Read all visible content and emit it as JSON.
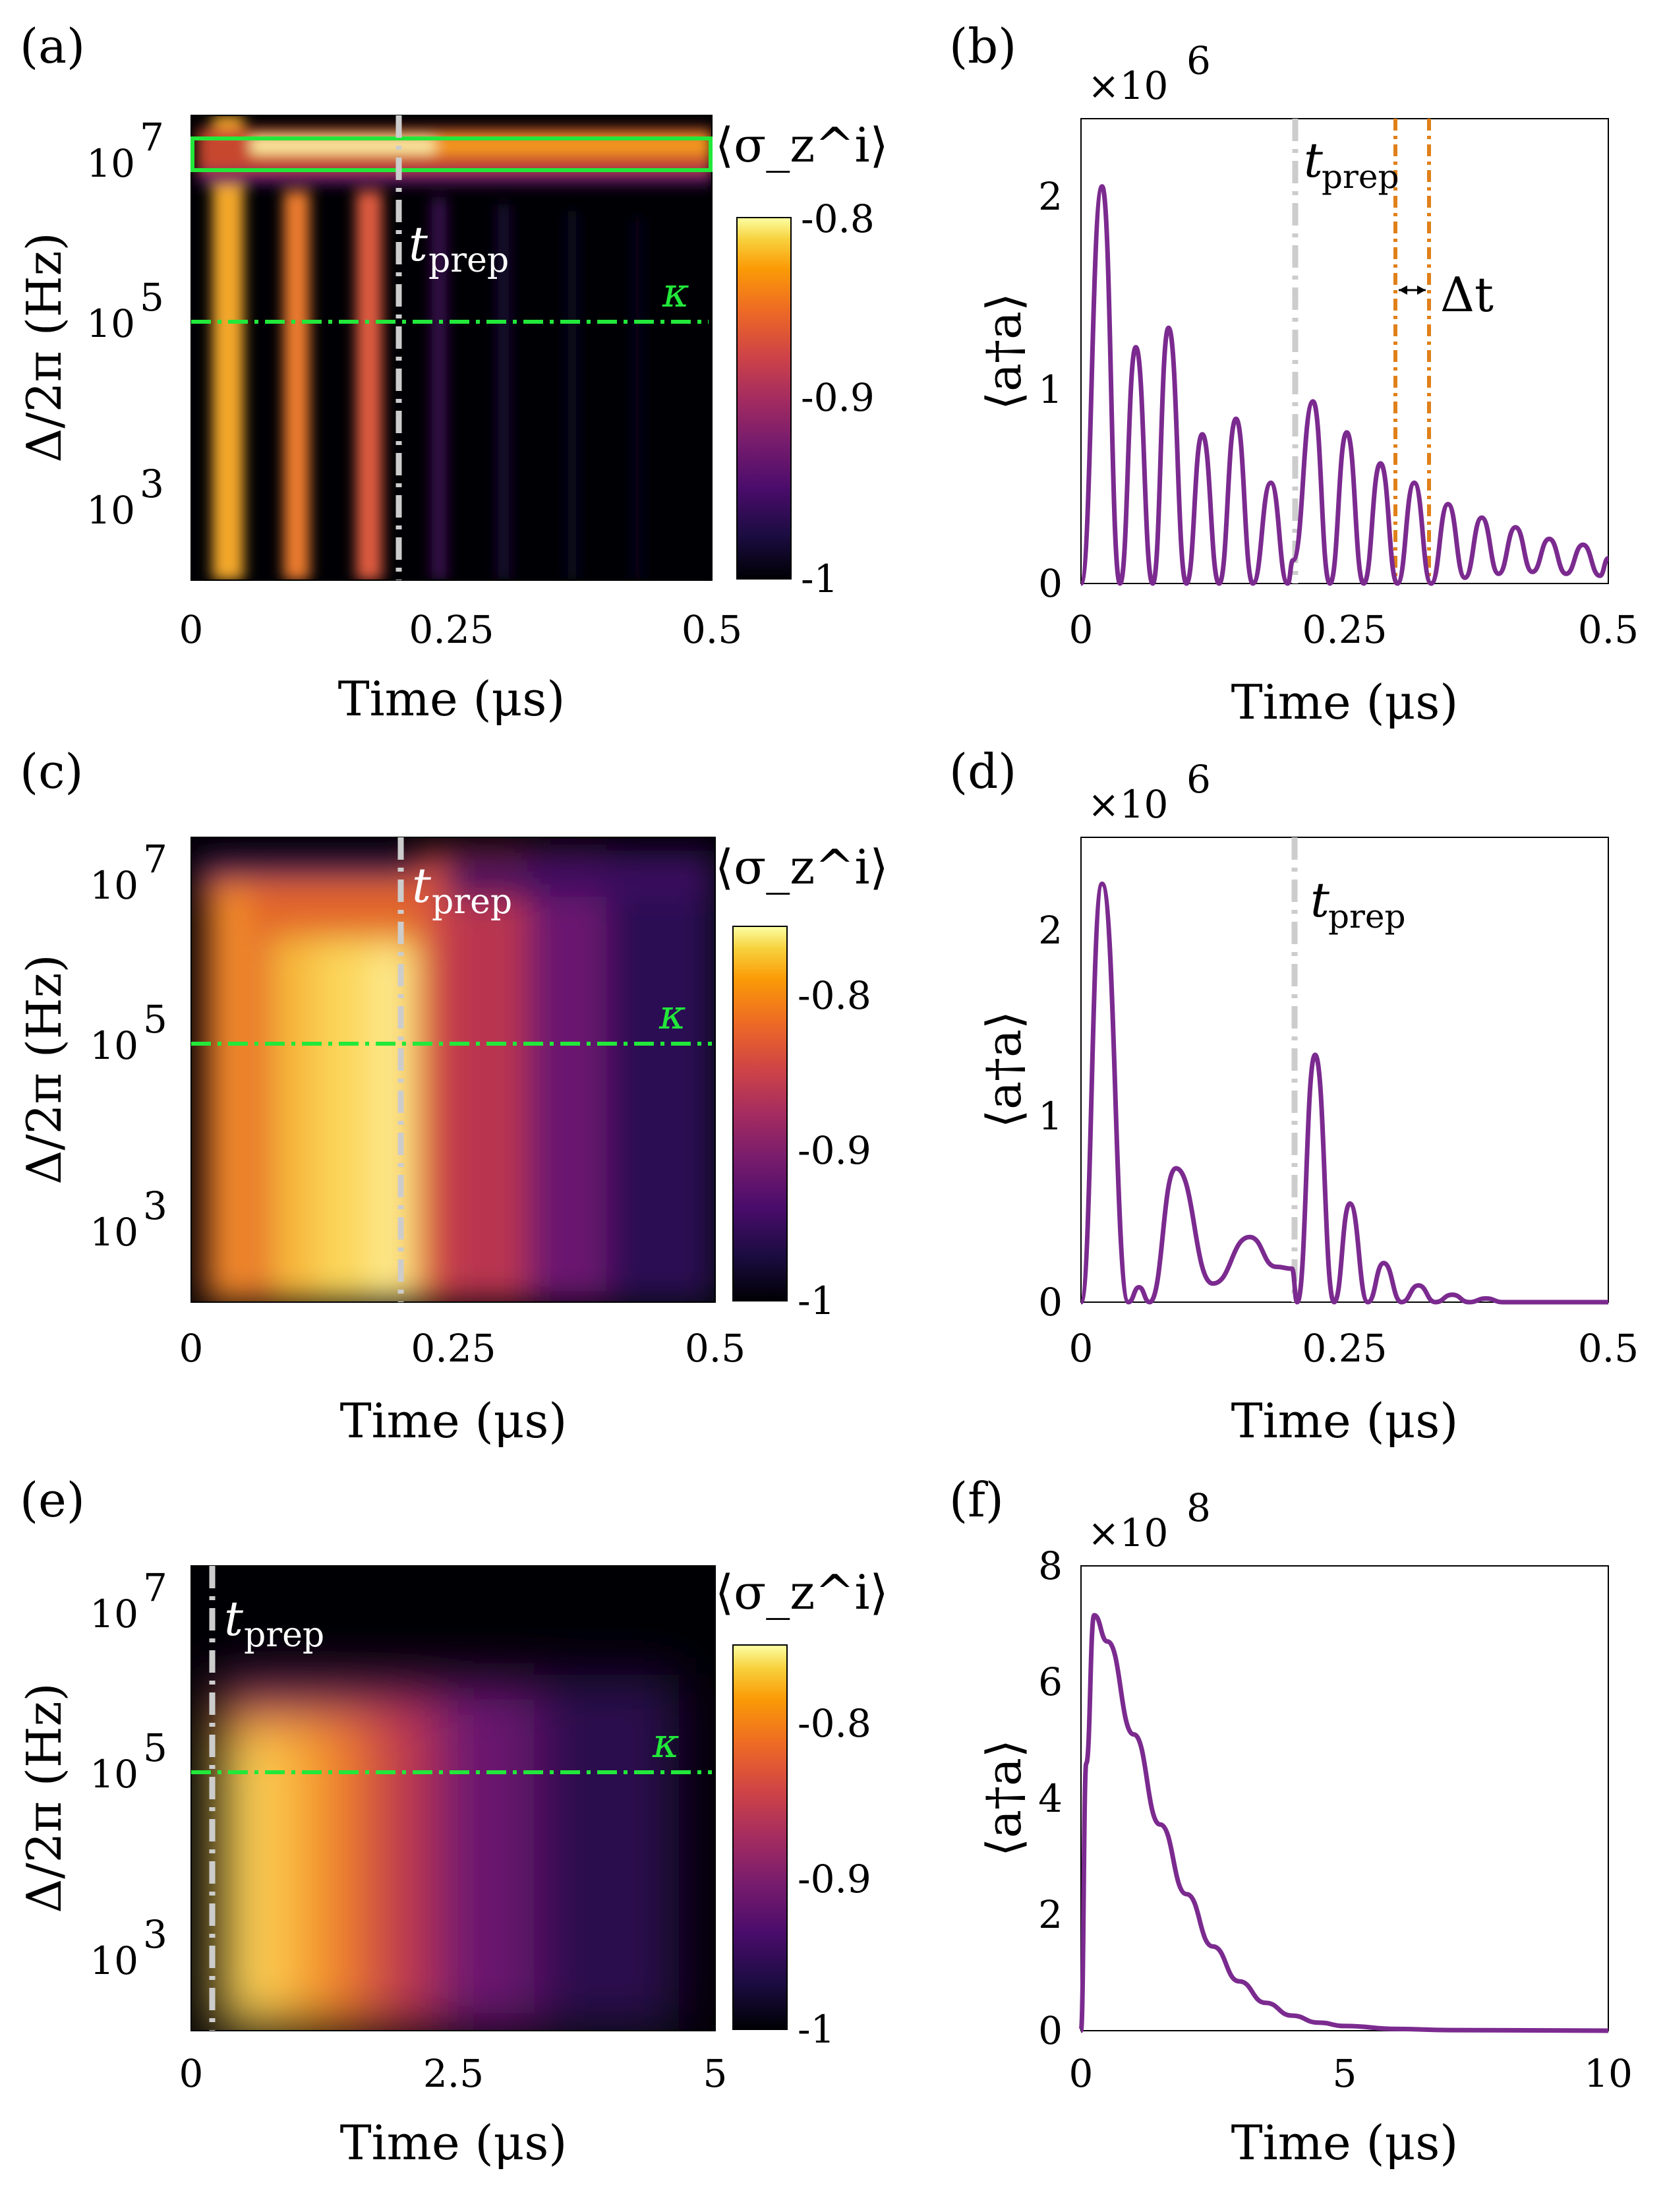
{
  "figure": "Six-panel simulation figure: spin polarization heatmaps and cavity photon number",
  "colors": {
    "kappa_line": "#22e83a",
    "tprep_line": "#cccccc",
    "photon_line": "#7b2a8f",
    "orange_markers": "#e0801a",
    "highlight_box": "#22e83a"
  },
  "chart_data": [
    {
      "panel": "(a)",
      "type": "heatmap",
      "title": "",
      "xlabel": "Time (μs)",
      "ylabel": "Δ/2π (Hz)",
      "x_ticks": [
        "0",
        "0.25",
        "0.5"
      ],
      "x_tick_values": [
        0,
        0.25,
        0.5
      ],
      "xlim": [
        0,
        0.5
      ],
      "y_ticks_exp": [
        "7",
        "5",
        "3"
      ],
      "y_tick_values_log10": [
        7,
        5,
        3
      ],
      "ylim_log10": [
        2.2,
        7.6
      ],
      "colorbar": {
        "label": "⟨σ_z^i⟩",
        "ticks": [
          "-0.8",
          "-0.9",
          "-1"
        ],
        "tick_values": [
          -0.8,
          -0.9,
          -1.0
        ],
        "range": [
          -1.0,
          -0.8
        ]
      },
      "annotations": {
        "tprep_label": "t",
        "tprep_sub": "prep",
        "tprep_time": 0.2,
        "kappa_label": "κ",
        "kappa_log10": 5.15,
        "highlight_box_log10": [
          6.85,
          7.28
        ]
      },
      "pattern": "coherent oscillation bands at t≈0.03, 0.1, 0.18 μs across all Δ; bright persistent band near Δ≈1e7 Hz"
    },
    {
      "panel": "(b)",
      "type": "line",
      "xlabel": "Time (μs)",
      "ylabel": "⟨a†a⟩",
      "multiplier": "×10",
      "multiplier_exp": "6",
      "x_ticks": [
        "0",
        "0.25",
        "0.5"
      ],
      "x_tick_values": [
        0,
        0.25,
        0.5
      ],
      "xlim": [
        0,
        0.5
      ],
      "y_ticks": [
        "0",
        "1",
        "2"
      ],
      "y_tick_values": [
        0,
        1,
        2
      ],
      "ylim": [
        0,
        2.4
      ],
      "annotations": {
        "tprep_label": "t",
        "tprep_sub": "prep",
        "tprep_time": 0.2,
        "delta_t_label": "Δt",
        "orange_lines_time": [
          0.298,
          0.33
        ]
      },
      "peaks": [
        {
          "t": 0.02,
          "y": 2.05
        },
        {
          "t": 0.052,
          "y": 1.22
        },
        {
          "t": 0.083,
          "y": 1.32
        },
        {
          "t": 0.115,
          "y": 0.77
        },
        {
          "t": 0.147,
          "y": 0.85
        },
        {
          "t": 0.18,
          "y": 0.52
        },
        {
          "t": 0.22,
          "y": 0.94
        },
        {
          "t": 0.252,
          "y": 0.78
        },
        {
          "t": 0.284,
          "y": 0.62
        },
        {
          "t": 0.316,
          "y": 0.52
        },
        {
          "t": 0.348,
          "y": 0.41
        },
        {
          "t": 0.38,
          "y": 0.34
        },
        {
          "t": 0.412,
          "y": 0.29
        },
        {
          "t": 0.444,
          "y": 0.23
        },
        {
          "t": 0.476,
          "y": 0.2
        }
      ],
      "troughs": [
        {
          "t": 0.0,
          "y": 0
        },
        {
          "t": 0.037,
          "y": 0
        },
        {
          "t": 0.068,
          "y": 0
        },
        {
          "t": 0.1,
          "y": 0
        },
        {
          "t": 0.131,
          "y": 0
        },
        {
          "t": 0.163,
          "y": 0
        },
        {
          "t": 0.196,
          "y": 0
        },
        {
          "t": 0.201,
          "y": 0.12
        },
        {
          "t": 0.236,
          "y": 0
        },
        {
          "t": 0.268,
          "y": 0
        },
        {
          "t": 0.3,
          "y": 0
        },
        {
          "t": 0.332,
          "y": 0
        },
        {
          "t": 0.364,
          "y": 0.03
        },
        {
          "t": 0.396,
          "y": 0.05
        },
        {
          "t": 0.428,
          "y": 0.06
        },
        {
          "t": 0.46,
          "y": 0.05
        },
        {
          "t": 0.492,
          "y": 0.04
        },
        {
          "t": 0.5,
          "y": 0.13
        }
      ]
    },
    {
      "panel": "(c)",
      "type": "heatmap",
      "xlabel": "Time (μs)",
      "ylabel": "Δ/2π (Hz)",
      "x_ticks": [
        "0",
        "0.25",
        "0.5"
      ],
      "x_tick_values": [
        0,
        0.25,
        0.5
      ],
      "xlim": [
        0,
        0.5
      ],
      "y_ticks_exp": [
        "7",
        "5",
        "3"
      ],
      "y_tick_values_log10": [
        7,
        5,
        3
      ],
      "ylim_log10": [
        2.2,
        7.6
      ],
      "colorbar": {
        "label": "⟨σ_z^i⟩",
        "ticks": [
          "-0.8",
          "-0.9",
          "-1"
        ],
        "tick_values": [
          -0.8,
          -0.9,
          -1.0
        ],
        "range": [
          -1.0,
          -0.75
        ]
      },
      "annotations": {
        "tprep_label": "t",
        "tprep_sub": "prep",
        "tprep_time": 0.2,
        "kappa_label": "κ",
        "kappa_log10": 5.15
      },
      "pattern": "broad bright region for 0.1–0.2 μs below Δ≈1e6 Hz, decaying after t_prep"
    },
    {
      "panel": "(d)",
      "type": "line",
      "xlabel": "Time (μs)",
      "ylabel": "⟨a†a⟩",
      "multiplier": "×10",
      "multiplier_exp": "6",
      "x_ticks": [
        "0",
        "0.25",
        "0.5"
      ],
      "x_tick_values": [
        0,
        0.25,
        0.5
      ],
      "xlim": [
        0,
        0.5
      ],
      "y_ticks": [
        "0",
        "1",
        "2"
      ],
      "y_tick_values": [
        0,
        1,
        2
      ],
      "ylim": [
        0,
        2.5
      ],
      "annotations": {
        "tprep_label": "t",
        "tprep_sub": "prep",
        "tprep_time": 0.2
      },
      "points": [
        {
          "t": 0.0,
          "y": 0
        },
        {
          "t": 0.02,
          "y": 2.25
        },
        {
          "t": 0.045,
          "y": 0
        },
        {
          "t": 0.055,
          "y": 0.08
        },
        {
          "t": 0.065,
          "y": 0
        },
        {
          "t": 0.09,
          "y": 0.72
        },
        {
          "t": 0.125,
          "y": 0.1
        },
        {
          "t": 0.16,
          "y": 0.35
        },
        {
          "t": 0.185,
          "y": 0.19
        },
        {
          "t": 0.2,
          "y": 0.18
        },
        {
          "t": 0.205,
          "y": 0.0
        },
        {
          "t": 0.222,
          "y": 1.33
        },
        {
          "t": 0.24,
          "y": 0.0
        },
        {
          "t": 0.255,
          "y": 0.53
        },
        {
          "t": 0.272,
          "y": 0.0
        },
        {
          "t": 0.287,
          "y": 0.21
        },
        {
          "t": 0.304,
          "y": 0.0
        },
        {
          "t": 0.32,
          "y": 0.09
        },
        {
          "t": 0.336,
          "y": 0.0
        },
        {
          "t": 0.352,
          "y": 0.04
        },
        {
          "t": 0.368,
          "y": 0.0
        },
        {
          "t": 0.384,
          "y": 0.02
        },
        {
          "t": 0.4,
          "y": 0.0
        },
        {
          "t": 0.5,
          "y": 0.0
        }
      ]
    },
    {
      "panel": "(e)",
      "type": "heatmap",
      "xlabel": "Time (μs)",
      "ylabel": "Δ/2π (Hz)",
      "x_ticks": [
        "0",
        "2.5",
        "5"
      ],
      "x_tick_values": [
        0,
        2.5,
        5
      ],
      "xlim": [
        0,
        5
      ],
      "y_ticks_exp": [
        "7",
        "5",
        "3"
      ],
      "y_tick_values_log10": [
        7,
        5,
        3
      ],
      "ylim_log10": [
        2.2,
        7.6
      ],
      "colorbar": {
        "label": "⟨σ_z^i⟩",
        "ticks": [
          "-0.8",
          "-0.9",
          "-1"
        ],
        "tick_values": [
          -0.8,
          -0.9,
          -1.0
        ],
        "range": [
          -1.0,
          -0.75
        ]
      },
      "annotations": {
        "tprep_label": "t",
        "tprep_sub": "prep",
        "tprep_time": 0.2,
        "kappa_label": "κ",
        "kappa_log10": 5.15
      },
      "pattern": "bright region just after t_prep below Δ≈1e6 Hz, decaying over ~3 μs"
    },
    {
      "panel": "(f)",
      "type": "line",
      "xlabel": "Time (μs)",
      "ylabel": "⟨a†a⟩",
      "multiplier": "×10",
      "multiplier_exp": "8",
      "x_ticks": [
        "0",
        "5",
        "10"
      ],
      "x_tick_values": [
        0,
        5,
        10
      ],
      "xlim": [
        0,
        10
      ],
      "y_ticks": [
        "0",
        "2",
        "4",
        "6",
        "8"
      ],
      "y_tick_values": [
        0,
        2,
        4,
        6,
        8
      ],
      "ylim": [
        0,
        8
      ],
      "points": [
        {
          "t": 0.0,
          "y": 0
        },
        {
          "t": 0.1,
          "y": 4.6
        },
        {
          "t": 0.25,
          "y": 7.15
        },
        {
          "t": 0.5,
          "y": 6.7
        },
        {
          "t": 1.0,
          "y": 5.1
        },
        {
          "t": 1.5,
          "y": 3.55
        },
        {
          "t": 2.0,
          "y": 2.35
        },
        {
          "t": 2.5,
          "y": 1.45
        },
        {
          "t": 3.0,
          "y": 0.85
        },
        {
          "t": 3.5,
          "y": 0.48
        },
        {
          "t": 4.0,
          "y": 0.26
        },
        {
          "t": 4.5,
          "y": 0.14
        },
        {
          "t": 5.0,
          "y": 0.08
        },
        {
          "t": 6.0,
          "y": 0.03
        },
        {
          "t": 7.0,
          "y": 0.01
        },
        {
          "t": 10.0,
          "y": 0.0
        }
      ]
    }
  ]
}
